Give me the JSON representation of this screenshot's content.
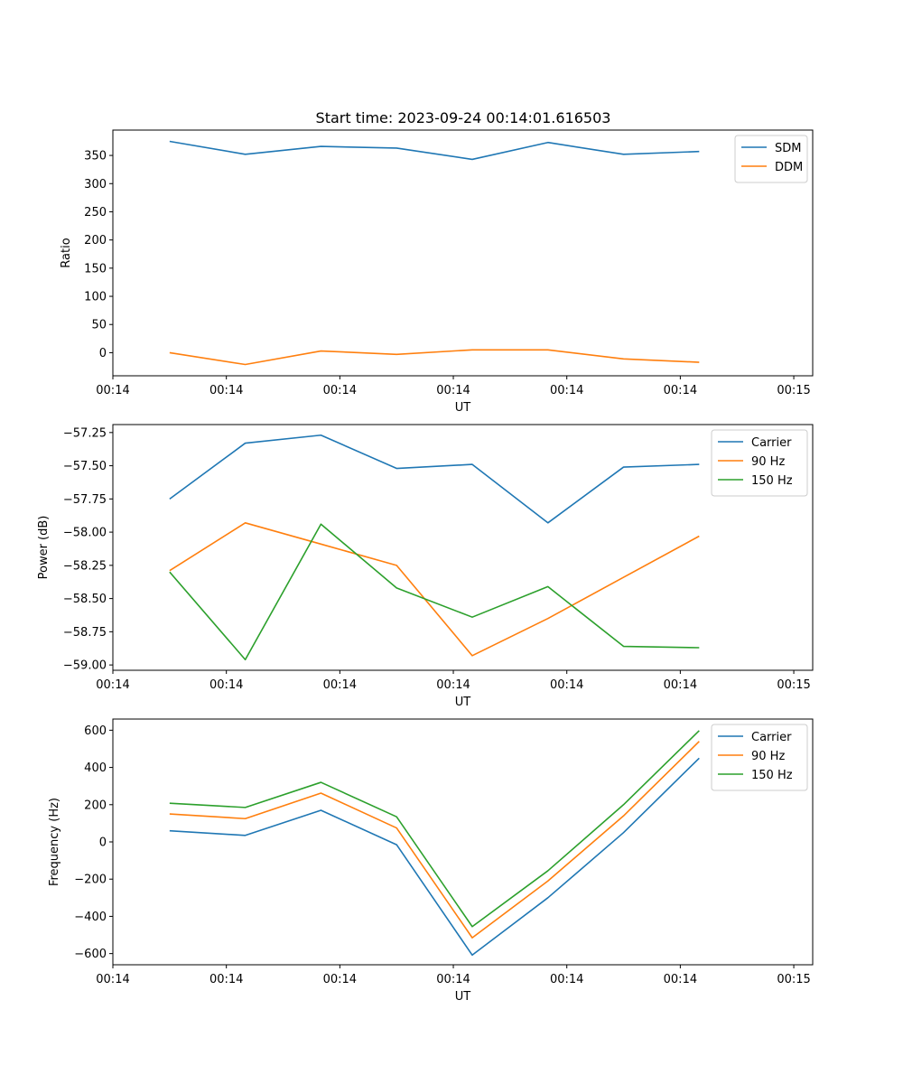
{
  "figure_title": "Start time: 2023-09-24 00:14:01.616503",
  "chart_data": [
    {
      "type": "line",
      "title": "Start time: 2023-09-24 00:14:01.616503",
      "xlabel": "UT",
      "ylabel": "Ratio",
      "xlim": [
        0,
        9.25
      ],
      "ylim": [
        -41,
        395
      ],
      "x": [
        0.75,
        1.75,
        2.75,
        3.75,
        4.75,
        5.75,
        6.75,
        7.75
      ],
      "xticks": [
        0,
        1.5,
        3,
        4.5,
        6,
        7.5,
        9
      ],
      "xtick_labels": [
        "00:14",
        "00:14",
        "00:14",
        "00:14",
        "00:14",
        "00:14",
        "00:15"
      ],
      "yticks": [
        0,
        50,
        100,
        150,
        200,
        250,
        300,
        350
      ],
      "ytick_labels": [
        "0",
        "50",
        "100",
        "150",
        "200",
        "250",
        "300",
        "350"
      ],
      "legend": "top-right",
      "series": [
        {
          "name": "SDM",
          "color": "#1f77b4",
          "values": [
            375,
            352,
            366,
            363,
            343,
            373,
            352,
            357
          ]
        },
        {
          "name": "DDM",
          "color": "#ff7f0e",
          "values": [
            0,
            -21,
            3,
            -3,
            5,
            5,
            -11,
            -17
          ]
        }
      ]
    },
    {
      "type": "line",
      "title": "",
      "xlabel": "UT",
      "ylabel": "Power (dB)",
      "xlim": [
        0,
        9.25
      ],
      "ylim": [
        -59.04,
        -57.19
      ],
      "x": [
        0.75,
        1.75,
        2.75,
        3.75,
        4.75,
        5.75,
        6.75,
        7.75
      ],
      "xticks": [
        0,
        1.5,
        3,
        4.5,
        6,
        7.5,
        9
      ],
      "xtick_labels": [
        "00:14",
        "00:14",
        "00:14",
        "00:14",
        "00:14",
        "00:14",
        "00:15"
      ],
      "yticks": [
        -59.0,
        -58.75,
        -58.5,
        -58.25,
        -58.0,
        -57.75,
        -57.5,
        -57.25
      ],
      "ytick_labels": [
        "−59.00",
        "−58.75",
        "−58.50",
        "−58.25",
        "−58.00",
        "−57.75",
        "−57.50",
        "−57.25"
      ],
      "legend": "top-right",
      "series": [
        {
          "name": "Carrier",
          "color": "#1f77b4",
          "values": [
            -57.75,
            -57.33,
            -57.27,
            -57.52,
            -57.49,
            -57.93,
            -57.51,
            -57.49
          ]
        },
        {
          "name": "90 Hz",
          "color": "#ff7f0e",
          "values": [
            -58.29,
            -57.93,
            -58.09,
            -58.25,
            -58.93,
            -58.65,
            -58.34,
            -58.03
          ]
        },
        {
          "name": "150 Hz",
          "color": "#2ca02c",
          "values": [
            -58.3,
            -58.96,
            -57.94,
            -58.42,
            -58.64,
            -58.41,
            -58.86,
            -58.87
          ]
        }
      ]
    },
    {
      "type": "line",
      "title": "",
      "xlabel": "UT",
      "ylabel": "Frequency (Hz)",
      "xlim": [
        0,
        9.25
      ],
      "ylim": [
        -660,
        660
      ],
      "x": [
        0.75,
        1.75,
        2.75,
        3.75,
        4.75,
        5.75,
        6.75,
        7.75
      ],
      "xticks": [
        0,
        1.5,
        3,
        4.5,
        6,
        7.5,
        9
      ],
      "xtick_labels": [
        "00:14",
        "00:14",
        "00:14",
        "00:14",
        "00:14",
        "00:14",
        "00:15"
      ],
      "yticks": [
        -600,
        -400,
        -200,
        0,
        200,
        400,
        600
      ],
      "ytick_labels": [
        "−600",
        "−400",
        "−200",
        "0",
        "200",
        "400",
        "600"
      ],
      "legend": "top-right",
      "series": [
        {
          "name": "Carrier",
          "color": "#1f77b4",
          "values": [
            60,
            35,
            170,
            -15,
            -608,
            -300,
            50,
            450
          ]
        },
        {
          "name": "90 Hz",
          "color": "#ff7f0e",
          "values": [
            150,
            125,
            262,
            75,
            -515,
            -210,
            140,
            540
          ]
        },
        {
          "name": "150 Hz",
          "color": "#2ca02c",
          "values": [
            208,
            185,
            320,
            135,
            -455,
            -155,
            200,
            598
          ]
        }
      ]
    }
  ]
}
